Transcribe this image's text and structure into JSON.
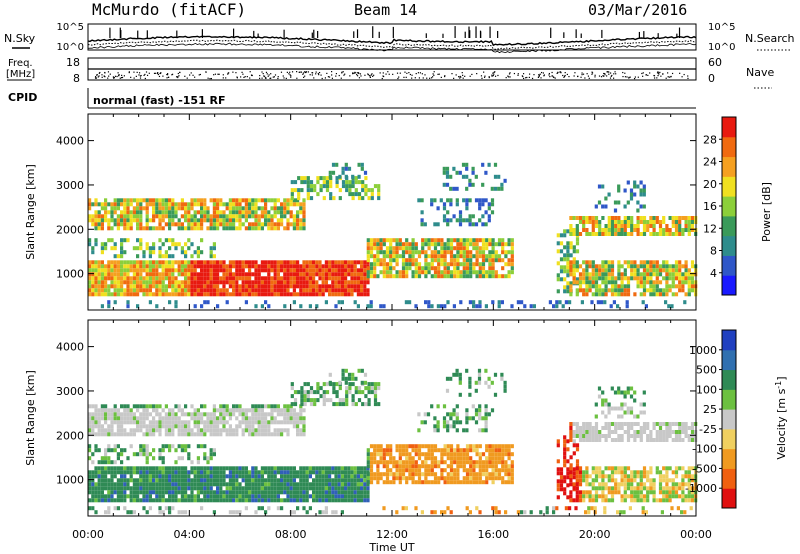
{
  "header": {
    "station": "McMurdo (fitACF)",
    "beam": "Beam 14",
    "date": "03/Mar/2016"
  },
  "status": {
    "nsky_label": "N.Sky",
    "nsearch_label": "N.Search",
    "freq_label_line1": "Freq.",
    "freq_label_line2": "[MHz]",
    "nave_label": "Nave",
    "cpid_label": "CPID",
    "cpid_text": "normal (fast) -151 RF",
    "noise_ticks_left": [
      "10^5",
      "10^0"
    ],
    "noise_ticks_right": [
      "10^5",
      "10^0"
    ],
    "freq_ticks": [
      "18",
      "8"
    ],
    "nave_ticks": [
      "60",
      "0"
    ]
  },
  "chart_data": [
    {
      "type": "heatmap",
      "name": "power-panel",
      "ylabel": "Slant Range [km]",
      "xlabel": "",
      "ylim": [
        180,
        4600
      ],
      "y_ticks": [
        1000,
        2000,
        3000,
        4000
      ],
      "xlim_hours": [
        0,
        24
      ],
      "colorbar": {
        "label": "Power [dB]",
        "ticks": [
          4,
          8,
          12,
          16,
          20,
          24,
          28
        ],
        "range": [
          0,
          32
        ],
        "colors": [
          "#1a1aff",
          "#2f57c8",
          "#2e8c8c",
          "#3a9a5a",
          "#8ccf3a",
          "#f0e020",
          "#f5a020",
          "#f06a10",
          "#e81a10"
        ]
      }
    },
    {
      "type": "heatmap",
      "name": "velocity-panel",
      "ylabel": "Slant Range [km]",
      "xlabel": "Time UT",
      "ylim": [
        180,
        4600
      ],
      "y_ticks": [
        1000,
        2000,
        3000,
        4000
      ],
      "xlim_hours": [
        0,
        24
      ],
      "x_ticks": [
        "00:00",
        "04:00",
        "08:00",
        "12:00",
        "16:00",
        "20:00",
        "00:00"
      ],
      "colorbar": {
        "label": "Velocity [m s^-1]",
        "ticks": [
          1000,
          500,
          100,
          25,
          -25,
          -100,
          -500,
          -1000
        ],
        "colors": [
          "#2040c0",
          "#3070b0",
          "#2f8a55",
          "#6cc040",
          "#c8c8c8",
          "#f0d060",
          "#f09a20",
          "#f06010",
          "#e01010"
        ]
      }
    }
  ]
}
